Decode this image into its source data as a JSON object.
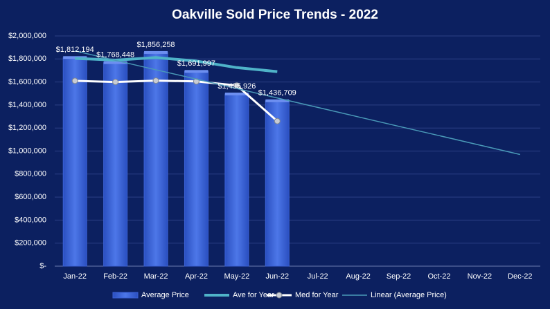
{
  "chart_data": {
    "type": "bar",
    "title": "Oakville  Sold Price Trends  - 2022",
    "categories": [
      "Jan-22",
      "Feb-22",
      "Mar-22",
      "Apr-22",
      "May-22",
      "Jun-22",
      "Jul-22",
      "Aug-22",
      "Sep-22",
      "Oct-22",
      "Nov-22",
      "Dec-22"
    ],
    "series": [
      {
        "name": "Average Price",
        "type": "bar",
        "color": "#3b62d6",
        "values": [
          1812194,
          1768448,
          1856258,
          1691997,
          1495926,
          1436709,
          null,
          null,
          null,
          null,
          null,
          null
        ],
        "value_labels": [
          "$1,812,194",
          "$1,768,448",
          "$1,856,258",
          "$1,691,997",
          "$1,495,926",
          "$1,436,709",
          null,
          null,
          null,
          null,
          null,
          null
        ]
      },
      {
        "name": "Ave for Year",
        "type": "line",
        "color": "#4fb3c8",
        "line_width": 4,
        "marker": false,
        "values": [
          1805000,
          1790000,
          1812000,
          1782000,
          1725000,
          1690000,
          null,
          null,
          null,
          null,
          null,
          null
        ]
      },
      {
        "name": "Med for Year",
        "type": "line",
        "color": "#ffffff",
        "line_width": 3,
        "marker": true,
        "values": [
          1610000,
          1600000,
          1612000,
          1605000,
          1570000,
          1260000,
          null,
          null,
          null,
          null,
          null,
          null
        ]
      },
      {
        "name": "Linear (Average Price)",
        "type": "line",
        "color": "#4a9ab8",
        "line_width": 1.5,
        "marker": false,
        "values": [
          1870000,
          1788000,
          1706000,
          1625000,
          1543000,
          1461000,
          1379000,
          1297000,
          1215000,
          1134000,
          1052000,
          970000
        ]
      }
    ],
    "ylim": [
      0,
      2000000
    ],
    "yticks": [
      {
        "value": 0,
        "label": "$-"
      },
      {
        "value": 200000,
        "label": "$200,000"
      },
      {
        "value": 400000,
        "label": "$400,000"
      },
      {
        "value": 600000,
        "label": "$600,000"
      },
      {
        "value": 800000,
        "label": "$800,000"
      },
      {
        "value": 1000000,
        "label": "$1,000,000"
      },
      {
        "value": 1200000,
        "label": "$1,200,000"
      },
      {
        "value": 1400000,
        "label": "$1,400,000"
      },
      {
        "value": 1600000,
        "label": "$1,600,000"
      },
      {
        "value": 1800000,
        "label": "$1,800,000"
      },
      {
        "value": 2000000,
        "label": "$2,000,000"
      }
    ],
    "grid": true,
    "legend": "bottom"
  }
}
